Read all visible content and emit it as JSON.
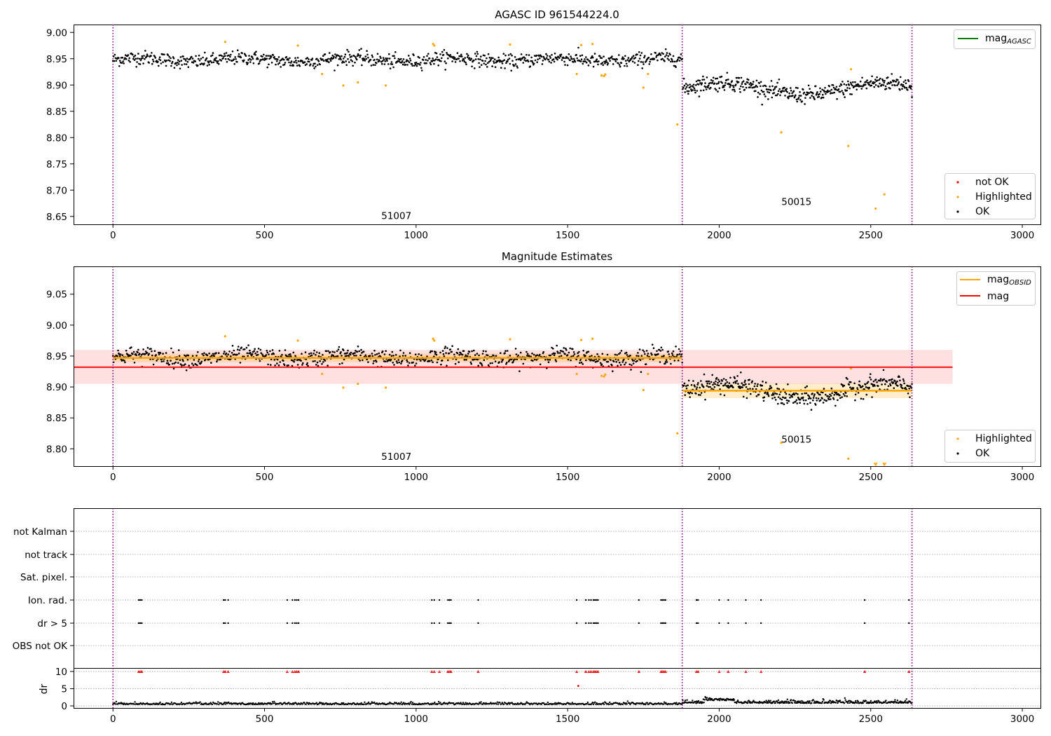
{
  "chart_data": [
    {
      "type": "scatter",
      "title": "AGASC ID 961544224.0",
      "xlabel": "",
      "ylabel": "",
      "xlim": [
        -130,
        3060
      ],
      "ylim": [
        8.635,
        9.015
      ],
      "xticks": [
        0,
        500,
        1000,
        1500,
        2000,
        2500,
        3000
      ],
      "xtick_labels": [
        "0",
        "500",
        "1000",
        "1500",
        "2000",
        "2500",
        "3000"
      ],
      "yticks": [
        8.65,
        8.7,
        8.75,
        8.8,
        8.85,
        8.9,
        8.95,
        9.0
      ],
      "ytick_labels": [
        "8.65",
        "8.70",
        "8.75",
        "8.80",
        "8.85",
        "8.90",
        "8.95",
        "9.00"
      ],
      "obs_boundaries": [
        0,
        1878,
        2636
      ],
      "obs_labels": [
        {
          "text": "51007",
          "x": 935,
          "y": 8.645
        },
        {
          "text": "50015",
          "x": 2255,
          "y": 8.672
        }
      ],
      "series": [
        {
          "name": "OK",
          "color": "#000000",
          "segments": [
            {
              "x0": 0,
              "x1": 1878,
              "center": 8.948,
              "spread": 0.012,
              "n": 900
            },
            {
              "x0": 1880,
              "x1": 2636,
              "center": 8.893,
              "spread": 0.014,
              "n": 420
            }
          ]
        },
        {
          "name": "Highlighted",
          "color": "#ffa500",
          "points": [
            [
              370,
              8.982
            ],
            [
              610,
              8.975
            ],
            [
              690,
              8.921
            ],
            [
              760,
              8.899
            ],
            [
              808,
              8.905
            ],
            [
              900,
              8.899
            ],
            [
              1056,
              8.978
            ],
            [
              1060,
              8.975
            ],
            [
              1310,
              8.977
            ],
            [
              1530,
              8.921
            ],
            [
              1545,
              8.976
            ],
            [
              1582,
              8.978
            ],
            [
              1612,
              8.918
            ],
            [
              1620,
              8.917
            ],
            [
              1624,
              8.92
            ],
            [
              1750,
              8.895
            ],
            [
              1765,
              8.921
            ],
            [
              1862,
              8.825
            ],
            [
              2205,
              8.81
            ],
            [
              2426,
              8.784
            ],
            [
              2435,
              8.93
            ],
            [
              2516,
              8.665
            ],
            [
              2545,
              8.692
            ]
          ]
        },
        {
          "name": "not OK",
          "color": "#ff0000",
          "points": []
        }
      ],
      "lines": [
        {
          "name": "mag_AGASC",
          "color": "#008000"
        }
      ],
      "legend_lines": [
        {
          "label": "mag",
          "sub": "AGASC",
          "color": "#008000"
        }
      ],
      "legend_markers": [
        {
          "label": "not OK",
          "color": "#ff0000"
        },
        {
          "label": "Highlighted",
          "color": "#ffa500"
        },
        {
          "label": "OK",
          "color": "#000000"
        }
      ],
      "legend_placement": [
        "upper-right",
        "lower-right"
      ]
    },
    {
      "type": "scatter",
      "title": "Magnitude Estimates",
      "xlabel": "",
      "ylabel": "",
      "xlim": [
        -130,
        3060
      ],
      "ylim": [
        8.772,
        9.095
      ],
      "xticks": [
        0,
        500,
        1000,
        1500,
        2000,
        2500,
        3000
      ],
      "xtick_labels": [
        "0",
        "500",
        "1000",
        "1500",
        "2000",
        "2500",
        "3000"
      ],
      "yticks": [
        8.8,
        8.85,
        8.9,
        8.95,
        9.0,
        9.05
      ],
      "ytick_labels": [
        "8.80",
        "8.85",
        "8.90",
        "8.95",
        "9.00",
        "9.05"
      ],
      "obs_boundaries": [
        0,
        1878,
        2636
      ],
      "obs_labels": [
        {
          "text": "51007",
          "x": 935,
          "y": 8.782
        },
        {
          "text": "50015",
          "x": 2255,
          "y": 8.81
        }
      ],
      "mag": {
        "value": 8.932,
        "band": [
          8.905,
          8.96
        ],
        "x0": -130,
        "x1": 2770,
        "color": "#ff0000"
      },
      "mag_obsid": [
        {
          "x0": 0,
          "x1": 1878,
          "value": 8.947,
          "band": [
            8.94,
            8.954
          ]
        },
        {
          "x0": 1880,
          "x1": 2636,
          "value": 8.894,
          "band": [
            8.882,
            8.906
          ]
        }
      ],
      "series": [
        {
          "name": "OK",
          "color": "#000000",
          "segments": [
            {
              "x0": 0,
              "x1": 1878,
              "center": 8.948,
              "spread": 0.012,
              "n": 900
            },
            {
              "x0": 1880,
              "x1": 2636,
              "center": 8.893,
              "spread": 0.014,
              "n": 420
            }
          ]
        },
        {
          "name": "Highlighted",
          "color": "#ffa500",
          "points": [
            [
              370,
              8.982
            ],
            [
              610,
              8.975
            ],
            [
              690,
              8.921
            ],
            [
              760,
              8.899
            ],
            [
              808,
              8.905
            ],
            [
              900,
              8.899
            ],
            [
              1056,
              8.978
            ],
            [
              1060,
              8.975
            ],
            [
              1310,
              8.977
            ],
            [
              1530,
              8.921
            ],
            [
              1545,
              8.976
            ],
            [
              1582,
              8.978
            ],
            [
              1612,
              8.918
            ],
            [
              1620,
              8.917
            ],
            [
              1624,
              8.92
            ],
            [
              1750,
              8.895
            ],
            [
              1765,
              8.921
            ],
            [
              1862,
              8.825
            ],
            [
              2205,
              8.81
            ],
            [
              2426,
              8.784
            ],
            [
              2435,
              8.93
            ]
          ],
          "clipped_points": [
            [
              2516,
              8.774
            ],
            [
              2545,
              8.774
            ]
          ]
        }
      ],
      "legend_lines": [
        {
          "label": "mag",
          "sub": "OBSID",
          "color": "#ffa500"
        },
        {
          "label": "mag",
          "sub": "",
          "color": "#ff0000"
        }
      ],
      "legend_markers": [
        {
          "label": "Highlighted",
          "color": "#ffa500"
        },
        {
          "label": "OK",
          "color": "#000000"
        }
      ],
      "legend_placement": [
        "upper-right",
        "lower-right"
      ]
    },
    {
      "type": "scatter",
      "title": "",
      "xlabel": "",
      "ylabel": "",
      "xlim": [
        -130,
        3060
      ],
      "xticks": [
        0,
        500,
        1000,
        1500,
        2000,
        2500,
        3000
      ],
      "xtick_labels": [
        "0",
        "500",
        "1000",
        "1500",
        "2000",
        "2500",
        "3000"
      ],
      "obs_boundaries": [
        0,
        1878,
        2636
      ],
      "flag_rows": [
        "not Kalman",
        "not track",
        "Sat. pixel.",
        "Ion. rad.",
        "dr > 5",
        "OBS not OK"
      ],
      "flag_events_x": [
        85,
        90,
        95,
        365,
        370,
        380,
        575,
        592,
        600,
        606,
        612,
        1052,
        1060,
        1077,
        1105,
        1110,
        1115,
        1205,
        1530,
        1560,
        1570,
        1577,
        1585,
        1590,
        1595,
        1600,
        1735,
        1808,
        1813,
        1818,
        1823,
        1925,
        1930,
        2000,
        2030,
        2088,
        2138,
        2480,
        2626
      ],
      "flag_events_x_extra_dr": [
        1530
      ],
      "dr_ylabel": "dr",
      "dr_ylim": [
        -0.6,
        10.8
      ],
      "dr_yticks": [
        0,
        5,
        10
      ],
      "dr_ytick_labels": [
        "0",
        "5",
        "10"
      ],
      "dr_threshold": 5,
      "dr_clip": 10,
      "dr_extra_point": [
        1535,
        5.8
      ],
      "dr_series": {
        "name": "dr",
        "color": "#000000",
        "segments": [
          {
            "x0": 0,
            "x1": 1878,
            "center": 0.42,
            "spread": 0.28,
            "n": 700
          },
          {
            "x0": 1880,
            "x1": 2636,
            "center": 0.75,
            "spread": 0.45,
            "n": 380
          }
        ]
      },
      "dr_outliers_color": "#ff0000"
    }
  ]
}
